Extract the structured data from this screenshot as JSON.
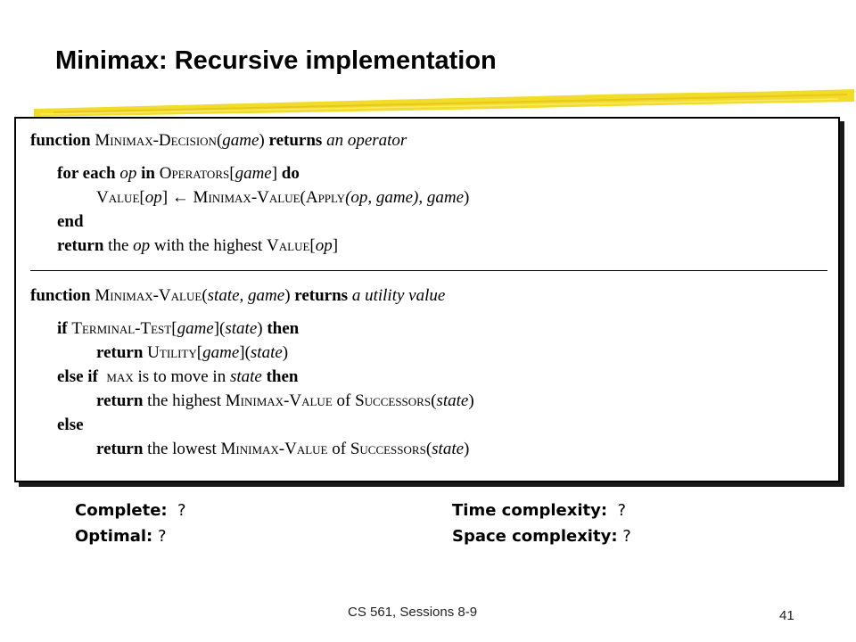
{
  "title": "Minimax: Recursive implementation",
  "colors": {
    "accent_swash": "#f2dc2a",
    "box_border": "#000000",
    "text": "#000000"
  },
  "algorithm": {
    "decision": {
      "kw_function": "function",
      "name": "Minimax-Decision",
      "open": "(",
      "param": "game",
      "close": ")",
      "kw_returns": "returns",
      "return_type": "an operator",
      "for_kw": "for each",
      "for_var": "op",
      "for_in": "in",
      "for_fn": "Operators",
      "for_lb": "[",
      "for_arg": "game",
      "for_rb": "]",
      "for_do": "do",
      "assign_fn": "Value",
      "assign_lb": "[",
      "assign_var": "op",
      "assign_rb": "]",
      "assign_arrow": " ← ",
      "assign_call": "Minimax-Value",
      "assign_open": "(",
      "apply_fn": "Apply",
      "apply_args": "(op, game), game",
      "assign_close": ")",
      "end_kw": "end",
      "ret_kw": "return",
      "ret_text1": " the ",
      "ret_var": "op",
      "ret_text2": " with the highest ",
      "ret_fn": "Value",
      "ret_lb": "[",
      "ret_arg": "op",
      "ret_rb": "]"
    },
    "value": {
      "kw_function": "function",
      "name": "Minimax-Value",
      "open": "(",
      "params": "state, game",
      "close": ")",
      "kw_returns": "returns",
      "return_type": "a utility value",
      "if_kw": "if",
      "if_fn": "Terminal-Test",
      "if_lb": "[",
      "if_arg": "game",
      "if_rb": "](",
      "if_state": "state",
      "if_close": ")",
      "if_then": "then",
      "r1_kw": "return",
      "r1_fn": "Utility",
      "r1_lb": "[",
      "r1_arg": "game",
      "r1_rb": "](",
      "r1_state": "state",
      "r1_close": ")",
      "elif_kw": "else if",
      "elif_max": "max",
      "elif_text": " is to move in ",
      "elif_state": "state",
      "elif_then": "then",
      "r2_kw": "return",
      "r2_text": " the highest ",
      "r2_fn": "Minimax-Value",
      "r2_of": " of ",
      "r2_succ": "Successors",
      "r2_open": "(",
      "r2_state": "state",
      "r2_close": ")",
      "else_kw": "else",
      "r3_kw": "return",
      "r3_text": " the lowest ",
      "r3_fn": "Minimax-Value",
      "r3_of": " of ",
      "r3_succ": "Successors",
      "r3_open": "(",
      "r3_state": "state",
      "r3_close": ")"
    }
  },
  "properties": {
    "complete": {
      "label": "Complete:",
      "value": "  ?"
    },
    "optimal": {
      "label": "Optimal:",
      "value": " ?"
    },
    "time": {
      "label": "Time complexity:",
      "value": "  ?"
    },
    "space": {
      "label": "Space complexity:",
      "value": " ?"
    }
  },
  "footer": {
    "course": "CS 561,  Sessions 8-9",
    "page_number": "41"
  }
}
